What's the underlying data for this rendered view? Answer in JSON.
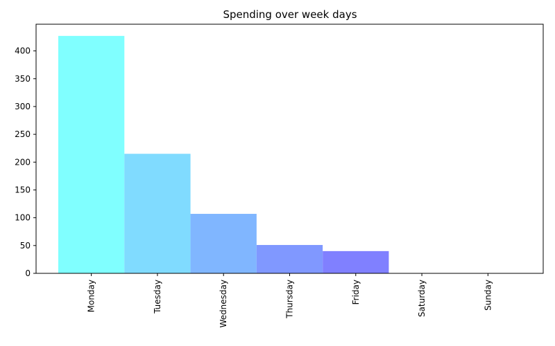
{
  "chart_data": {
    "type": "bar",
    "title": "Spending over week days",
    "xlabel": "",
    "ylabel": "",
    "categories": [
      "Monday",
      "Tuesday",
      "Wednesday",
      "Thursday",
      "Friday",
      "Saturday",
      "Sunday"
    ],
    "values": [
      427,
      215,
      107,
      51,
      40,
      0,
      0
    ],
    "colors": [
      "#80ffff",
      "#80dbff",
      "#80b6ff",
      "#8098ff",
      "#8080ff",
      "#8080ff",
      "#8080ff"
    ],
    "ylim": [
      0,
      448
    ],
    "yticks": [
      0,
      50,
      100,
      150,
      200,
      250,
      300,
      350,
      400
    ],
    "grid": false,
    "legend": "none"
  }
}
